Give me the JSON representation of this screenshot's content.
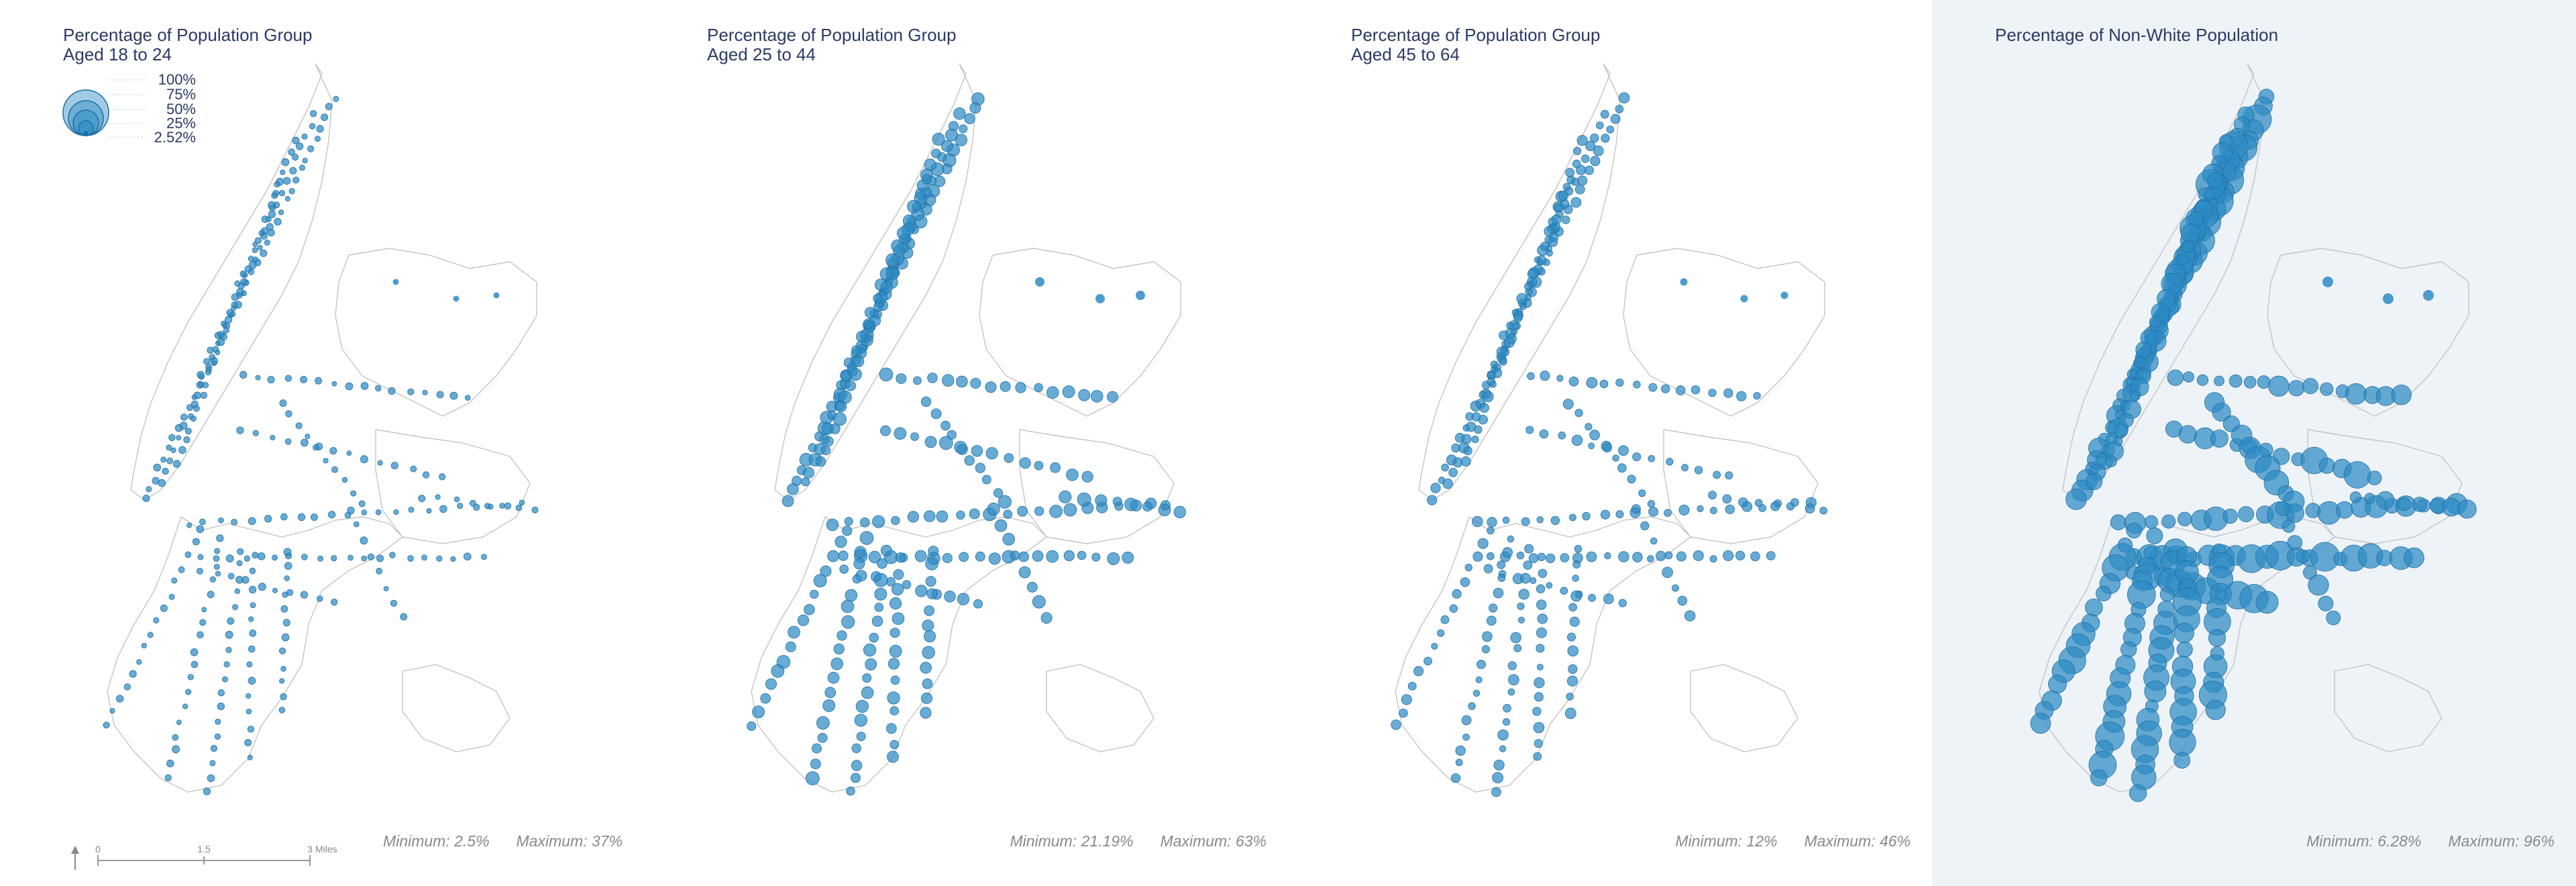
{
  "panels": [
    {
      "title_line1": "Percentage of Population Group",
      "title_line2": "Aged 18 to 24",
      "min_label": "Minimum: 2.5%",
      "max_label": "Maximum: 37%"
    },
    {
      "title_line1": "Percentage of Population Group",
      "title_line2": "Aged 25 to 44",
      "min_label": "Minimum: 21.19%",
      "max_label": "Maximum: 63%"
    },
    {
      "title_line1": "Percentage of Population Group",
      "title_line2": "Aged 45 to 64",
      "min_label": "Minimum: 12%",
      "max_label": "Maximum: 46%"
    },
    {
      "title_line1": "Percentage of Non-White Population",
      "title_line2": "",
      "min_label": "Minimum: 6.28%",
      "max_label": "Maximum: 96%"
    }
  ],
  "legend": {
    "values": [
      "100%",
      "75%",
      "50%",
      "25%",
      "2.52%"
    ]
  },
  "scalebar": {
    "ticks": [
      "0",
      "1.5",
      "3"
    ],
    "unit": "Miles"
  },
  "colors": {
    "dot": "#2e8bc4",
    "dot_stroke": "#1f6fa3",
    "coast": "#c4c4c4",
    "title": "#2b3a67",
    "stats": "#8a8a8a",
    "highlight_panel_bg": "#eef3f8"
  },
  "icons": {
    "north_arrow": "north-arrow-icon"
  }
}
